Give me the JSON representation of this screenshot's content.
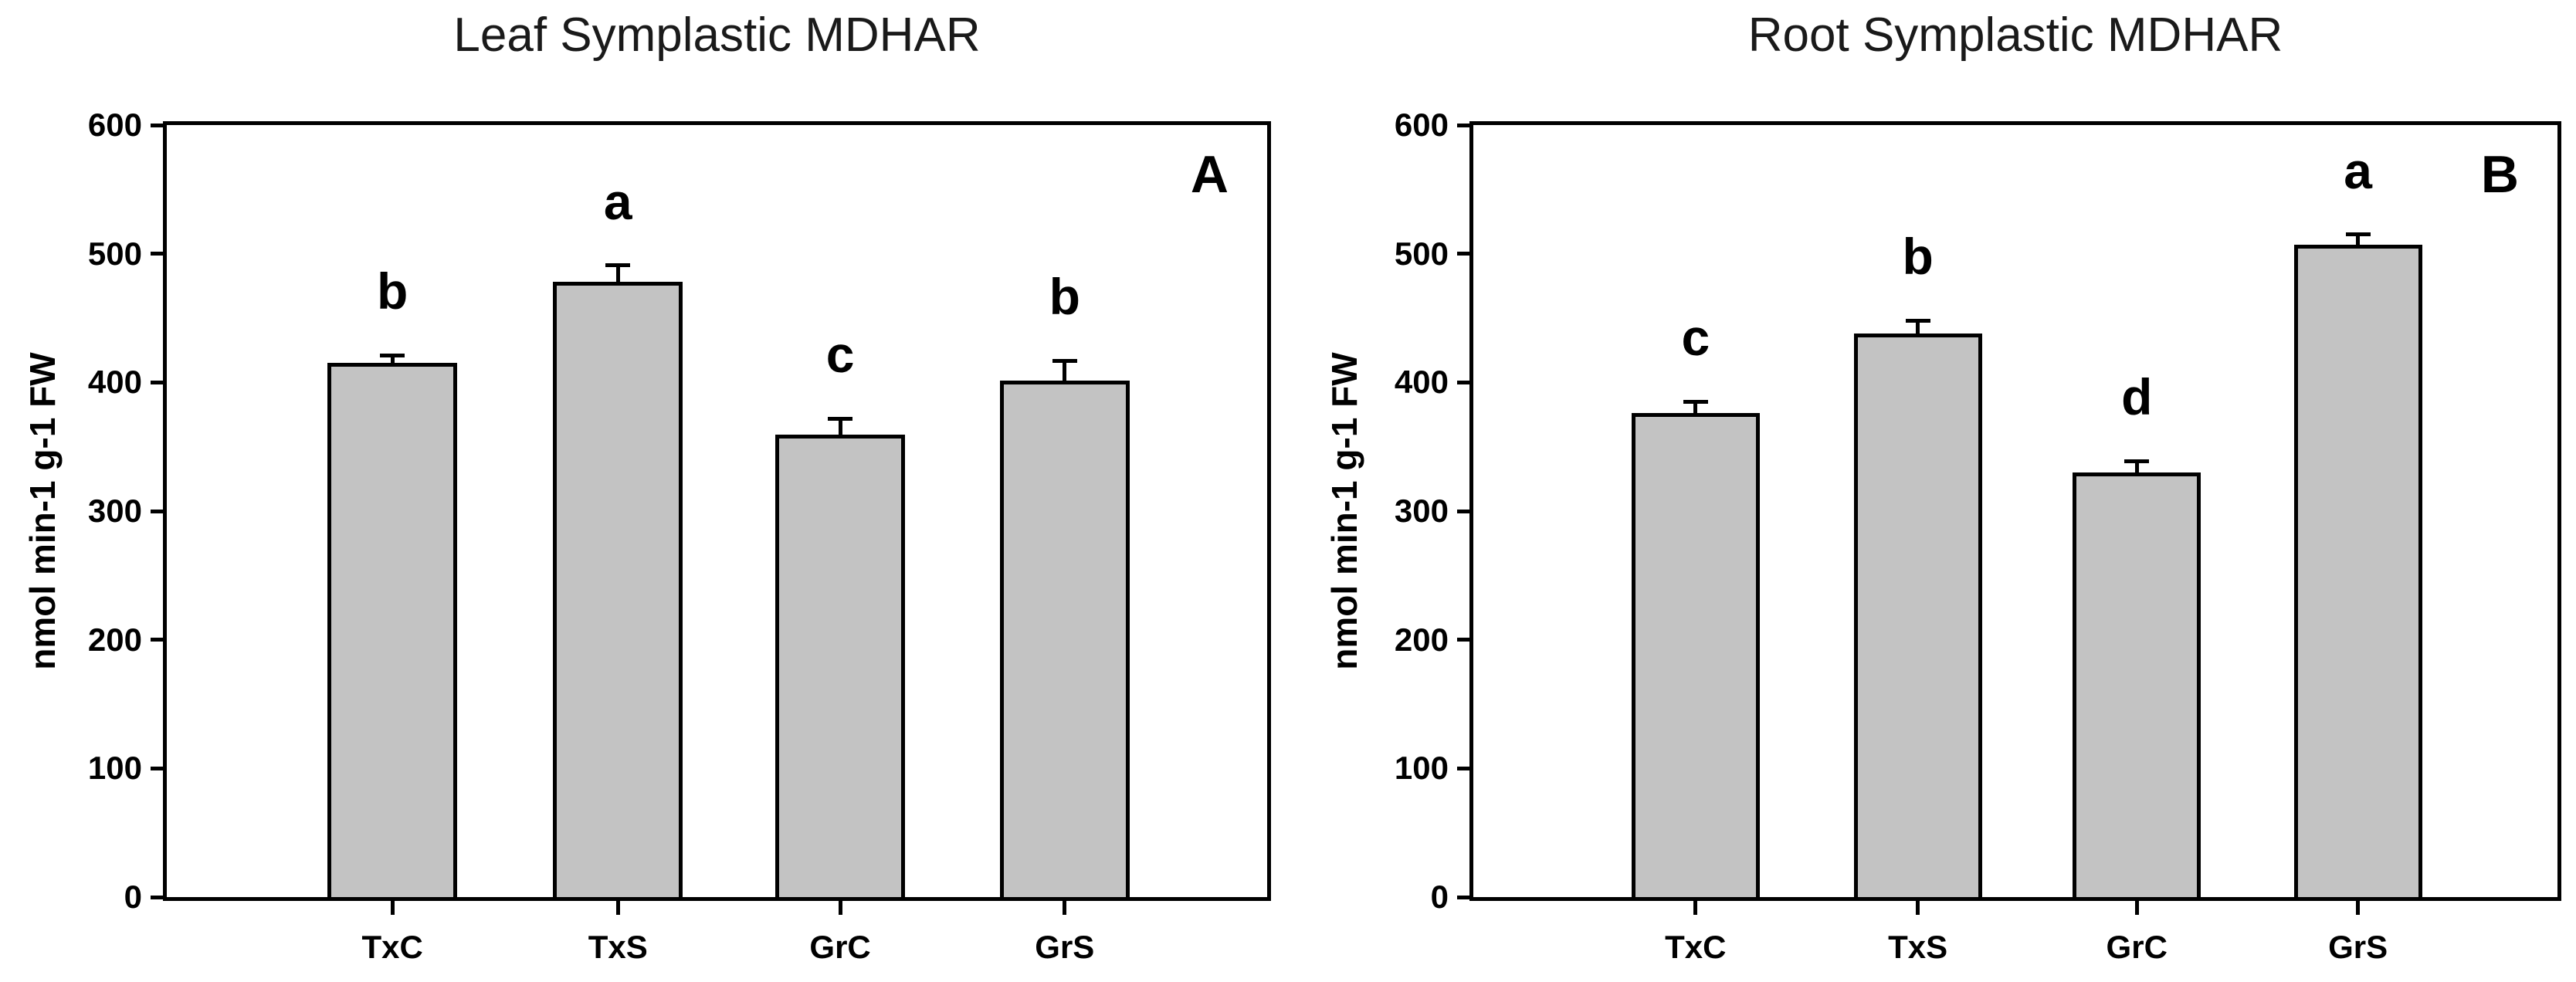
{
  "figure": {
    "background": "#ffffff",
    "axis_color": "#000000",
    "y_axis_label": "nmol min-1 g-1 FW",
    "categories": [
      "TxC",
      "TxS",
      "GrC",
      "GrS"
    ]
  },
  "chart_data": [
    {
      "type": "bar",
      "panel_label": "A",
      "title": "Leaf Symplastic MDHAR",
      "ylabel": "nmol min-1 g-1 FW",
      "xlabel": "",
      "ylim": [
        0,
        600
      ],
      "yticks": [
        0,
        100,
        200,
        300,
        400,
        500,
        600
      ],
      "categories": [
        "TxC",
        "TxS",
        "GrC",
        "GrS"
      ],
      "values": [
        414,
        477,
        358,
        400
      ],
      "errors": [
        7,
        14,
        14,
        17
      ],
      "sig_letters": [
        "b",
        "a",
        "c",
        "b"
      ],
      "bar_color": "#c3c3c3",
      "bar_border_color": "#000000",
      "grid": false,
      "legend": "none"
    },
    {
      "type": "bar",
      "panel_label": "B",
      "title": "Root Symplastic MDHAR",
      "ylabel": "nmol min-1 g-1 FW",
      "xlabel": "",
      "ylim": [
        0,
        600
      ],
      "yticks": [
        0,
        100,
        200,
        300,
        400,
        500,
        600
      ],
      "categories": [
        "TxC",
        "TxS",
        "GrC",
        "GrS"
      ],
      "values": [
        375,
        437,
        329,
        506
      ],
      "errors": [
        10,
        11,
        10,
        9
      ],
      "sig_letters": [
        "c",
        "b",
        "d",
        "a"
      ],
      "bar_color": "#c3c3c3",
      "bar_border_color": "#000000",
      "grid": false,
      "legend": "none"
    }
  ]
}
